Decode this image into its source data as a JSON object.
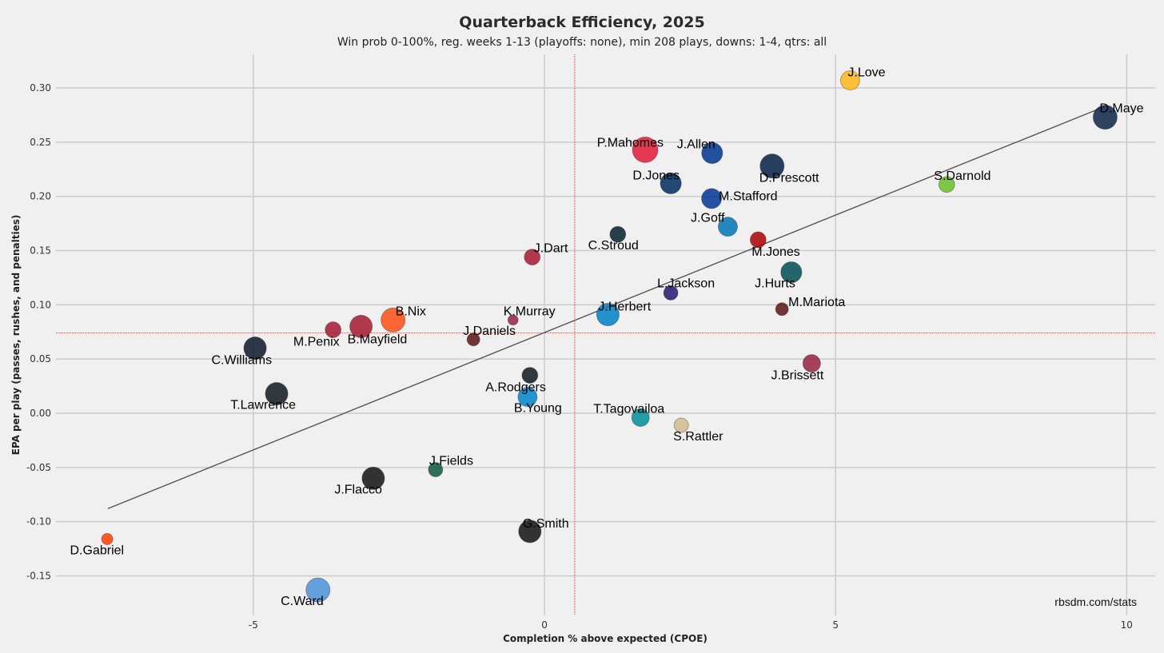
{
  "chart_data": {
    "type": "scatter",
    "title": "Quarterback Efficiency, 2025",
    "subtitle": "Win prob 0-100%, reg. weeks 1-13 (playoffs: none), min 208 plays, downs: 1-4, qtrs: all",
    "xlabel": "Completion % above expected (CPOE)",
    "ylabel": "EPA per play (passes, rushes, and penalties)",
    "xlim": [
      -8.39,
      10.49
    ],
    "ylim": [
      -0.1865,
      0.331
    ],
    "xticks": [
      -5,
      0,
      5,
      10
    ],
    "xtick_labels": [
      "-5",
      "0",
      "5",
      "10"
    ],
    "yticks": [
      -0.15,
      -0.1,
      -0.05,
      0.0,
      0.05,
      0.1,
      0.15,
      0.2,
      0.25,
      0.3
    ],
    "ytick_labels": [
      "-0.15",
      "-0.10",
      "-0.05",
      "0.00",
      "0.05",
      "0.10",
      "0.15",
      "0.20",
      "0.25",
      "0.30"
    ],
    "grid": true,
    "reference_lines": {
      "x_mean": 0.52,
      "y_mean": 0.074,
      "color": "#ff0000"
    },
    "trend_line": {
      "x": [
        -7.5,
        9.63
      ],
      "y": [
        -0.088,
        0.283
      ],
      "color": "#555555"
    },
    "credit": "rbsdm.com/stats",
    "points": [
      {
        "name": "J.Love",
        "x": 5.25,
        "y": 0.307,
        "size": 0.75,
        "color": "#FFB612"
      },
      {
        "name": "D.Maye",
        "x": 9.63,
        "y": 0.273,
        "size": 0.94,
        "color": "#0B2447"
      },
      {
        "name": "P.Mahomes",
        "x": 1.73,
        "y": 0.243,
        "size": 1.0,
        "color": "#E31837"
      },
      {
        "name": "J.Allen",
        "x": 2.88,
        "y": 0.24,
        "size": 0.82,
        "color": "#00338D"
      },
      {
        "name": "D.Prescott",
        "x": 3.91,
        "y": 0.228,
        "size": 0.94,
        "color": "#041E42"
      },
      {
        "name": "D.Jones",
        "x": 2.17,
        "y": 0.212,
        "size": 0.82,
        "color": "#002C5F"
      },
      {
        "name": "S.Darnold",
        "x": 6.91,
        "y": 0.211,
        "size": 0.62,
        "color": "#69BE28"
      },
      {
        "name": "M.Stafford",
        "x": 2.87,
        "y": 0.198,
        "size": 0.78,
        "color": "#003594"
      },
      {
        "name": "J.Goff",
        "x": 3.15,
        "y": 0.172,
        "size": 0.75,
        "color": "#0076B6"
      },
      {
        "name": "C.Stroud",
        "x": 1.26,
        "y": 0.165,
        "size": 0.62,
        "color": "#03202F"
      },
      {
        "name": "M.Jones",
        "x": 3.67,
        "y": 0.16,
        "size": 0.62,
        "color": "#AA0000"
      },
      {
        "name": "J.Dart",
        "x": -0.21,
        "y": 0.144,
        "size": 0.62,
        "color": "#A71930"
      },
      {
        "name": "J.Hurts",
        "x": 4.24,
        "y": 0.13,
        "size": 0.82,
        "color": "#004C54"
      },
      {
        "name": "L.Jackson",
        "x": 2.17,
        "y": 0.111,
        "size": 0.56,
        "color": "#241773"
      },
      {
        "name": "M.Mariota",
        "x": 4.08,
        "y": 0.096,
        "size": 0.5,
        "color": "#5A1414"
      },
      {
        "name": "J.Herbert",
        "x": 1.09,
        "y": 0.091,
        "size": 0.88,
        "color": "#0080C6"
      },
      {
        "name": "K.Murray",
        "x": -0.54,
        "y": 0.086,
        "size": 0.4,
        "color": "#97233F"
      },
      {
        "name": "B.Nix",
        "x": -2.6,
        "y": 0.086,
        "size": 0.94,
        "color": "#FB4F14"
      },
      {
        "name": "B.Mayfield",
        "x": -3.15,
        "y": 0.08,
        "size": 0.88,
        "color": "#A71930"
      },
      {
        "name": "M.Penix",
        "x": -3.63,
        "y": 0.077,
        "size": 0.62,
        "color": "#A71930"
      },
      {
        "name": "J.Daniels",
        "x": -1.22,
        "y": 0.068,
        "size": 0.5,
        "color": "#5A1414"
      },
      {
        "name": "C.Williams",
        "x": -4.97,
        "y": 0.06,
        "size": 0.88,
        "color": "#0B162A"
      },
      {
        "name": "J.Brissett",
        "x": 4.59,
        "y": 0.046,
        "size": 0.69,
        "color": "#97233F"
      },
      {
        "name": "A.Rodgers",
        "x": -0.25,
        "y": 0.035,
        "size": 0.62,
        "color": "#101820"
      },
      {
        "name": "T.Lawrence",
        "x": -4.6,
        "y": 0.018,
        "size": 0.88,
        "color": "#101820"
      },
      {
        "name": "B.Young",
        "x": -0.29,
        "y": 0.015,
        "size": 0.75,
        "color": "#0085CA"
      },
      {
        "name": "T.Tagovailoa",
        "x": 1.65,
        "y": -0.004,
        "size": 0.69,
        "color": "#008E97"
      },
      {
        "name": "S.Rattler",
        "x": 2.35,
        "y": -0.011,
        "size": 0.56,
        "color": "#D3BC8D"
      },
      {
        "name": "J.Fields",
        "x": -1.87,
        "y": -0.052,
        "size": 0.56,
        "color": "#125740"
      },
      {
        "name": "J.Flacco",
        "x": -2.94,
        "y": -0.06,
        "size": 0.88,
        "color": "#111111"
      },
      {
        "name": "G.Smith",
        "x": -0.25,
        "y": -0.109,
        "size": 0.88,
        "color": "#111111"
      },
      {
        "name": "D.Gabriel",
        "x": -7.51,
        "y": -0.116,
        "size": 0.44,
        "color": "#FF3C00"
      },
      {
        "name": "C.Ward",
        "x": -3.89,
        "y": -0.163,
        "size": 0.94,
        "color": "#4B92DB"
      }
    ]
  }
}
